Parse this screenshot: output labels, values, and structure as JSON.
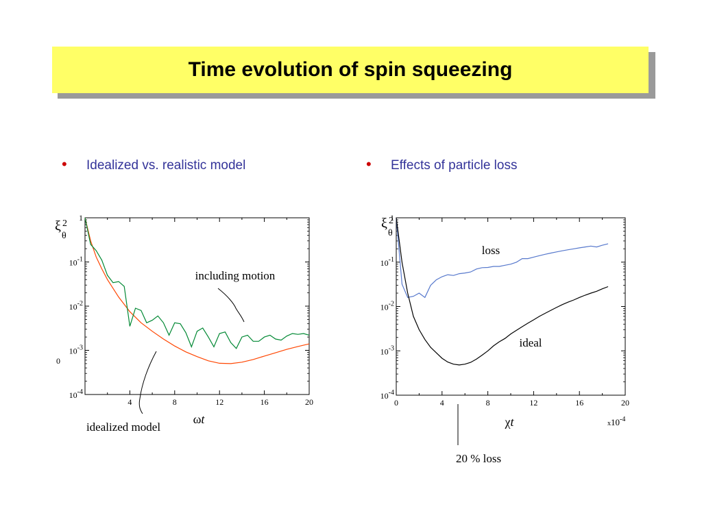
{
  "header": {
    "title": "Time evolution of spin squeezing"
  },
  "bullets": [
    {
      "text": "Idealized vs. realistic model"
    },
    {
      "text": "Effects of particle loss"
    }
  ],
  "chart_data": [
    {
      "type": "line",
      "ylabel_main": "ξ",
      "ylabel_sup": "2",
      "ylabel_sub": "θ",
      "xlabel": "ωt",
      "yscale": "log",
      "xlim": [
        0,
        20
      ],
      "ylim": [
        0.0001,
        1
      ],
      "x_ticks": [
        4,
        8,
        12,
        16,
        20
      ],
      "y_ticks": [
        {
          "value": 1,
          "base": "1",
          "exp": ""
        },
        {
          "value": 0.1,
          "base": "10",
          "exp": "-1"
        },
        {
          "value": 0.01,
          "base": "10",
          "exp": "-2"
        },
        {
          "value": 0.001,
          "base": "10",
          "exp": "-3"
        },
        {
          "value": 0.0001,
          "base": "10",
          "exp": "-4"
        }
      ],
      "stray_label": "0",
      "series": [
        {
          "color": "#ff4500",
          "x": [
            0,
            0.5,
            1,
            1.5,
            2,
            3,
            4,
            5,
            6,
            7,
            8,
            9,
            10,
            11,
            12,
            13,
            14,
            15,
            16,
            17,
            18,
            19,
            20
          ],
          "y": [
            1,
            0.3,
            0.13,
            0.07,
            0.04,
            0.016,
            0.0075,
            0.0042,
            0.0027,
            0.0018,
            0.00125,
            0.00092,
            0.00072,
            0.00058,
            0.00051,
            0.0005,
            0.00054,
            0.00062,
            0.00074,
            0.00088,
            0.00105,
            0.00122,
            0.0014
          ]
        },
        {
          "color": "#008833",
          "x": [
            0,
            0.5,
            1,
            1.5,
            2,
            2.5,
            3,
            3.5,
            4,
            4.5,
            5,
            5.5,
            6,
            6.5,
            7,
            7.5,
            8,
            8.5,
            9,
            9.5,
            10,
            10.5,
            11,
            11.5,
            12,
            12.5,
            13,
            13.5,
            14,
            14.5,
            15,
            15.5,
            16,
            16.5,
            17,
            17.5,
            18,
            18.5,
            19,
            19.5,
            20
          ],
          "y": [
            1,
            0.25,
            0.18,
            0.11,
            0.05,
            0.034,
            0.036,
            0.028,
            0.0035,
            0.009,
            0.008,
            0.0042,
            0.0048,
            0.006,
            0.0042,
            0.0022,
            0.0042,
            0.004,
            0.0025,
            0.0012,
            0.0027,
            0.0032,
            0.002,
            0.0012,
            0.0024,
            0.0026,
            0.0015,
            0.0011,
            0.002,
            0.0022,
            0.0016,
            0.0016,
            0.002,
            0.0022,
            0.0018,
            0.0017,
            0.0021,
            0.0024,
            0.0023,
            0.0024,
            0.0022
          ]
        }
      ],
      "annotations": [
        {
          "text": "including motion"
        },
        {
          "text": "idealized model"
        }
      ]
    },
    {
      "type": "line",
      "ylabel_main": "ξ",
      "ylabel_sup": "2",
      "ylabel_sub": "θ",
      "xlabel": "χt",
      "xlabel_scale": {
        "prefix": "x",
        "base": "10",
        "exp": "-4"
      },
      "yscale": "log",
      "xlim": [
        0,
        20
      ],
      "ylim": [
        0.0001,
        1
      ],
      "x_ticks": [
        0,
        4,
        8,
        12,
        16,
        20
      ],
      "y_ticks": [
        {
          "value": 1,
          "base": "1",
          "exp": ""
        },
        {
          "value": 0.1,
          "base": "10",
          "exp": "-1"
        },
        {
          "value": 0.01,
          "base": "10",
          "exp": "-2"
        },
        {
          "value": 0.001,
          "base": "10",
          "exp": "-3"
        },
        {
          "value": 0.0001,
          "base": "10",
          "exp": "-4"
        }
      ],
      "series": [
        {
          "name": "loss",
          "color": "#5577cc",
          "x": [
            0,
            0.5,
            1,
            1.5,
            2,
            2.5,
            3,
            3.5,
            4,
            4.5,
            5,
            5.5,
            6,
            6.5,
            7,
            7.5,
            8,
            8.5,
            9,
            9.5,
            10,
            10.5,
            11,
            11.5,
            12,
            12.5,
            13,
            13.5,
            14,
            14.5,
            15,
            15.5,
            16,
            16.5,
            17,
            17.5,
            18,
            18.5
          ],
          "y": [
            1,
            0.032,
            0.016,
            0.017,
            0.02,
            0.016,
            0.03,
            0.04,
            0.047,
            0.052,
            0.05,
            0.055,
            0.057,
            0.06,
            0.07,
            0.075,
            0.076,
            0.08,
            0.08,
            0.085,
            0.09,
            0.1,
            0.12,
            0.12,
            0.13,
            0.14,
            0.15,
            0.16,
            0.17,
            0.18,
            0.19,
            0.2,
            0.21,
            0.22,
            0.23,
            0.22,
            0.24,
            0.26
          ]
        },
        {
          "name": "ideal",
          "color": "#000000",
          "x": [
            0,
            0.5,
            1,
            1.5,
            2,
            2.5,
            3,
            3.5,
            4,
            4.5,
            5,
            5.5,
            6,
            6.5,
            7,
            7.5,
            8,
            8.5,
            9,
            9.5,
            10,
            10.5,
            11,
            11.5,
            12,
            12.5,
            13,
            13.5,
            14,
            14.5,
            15,
            15.5,
            16,
            16.5,
            17,
            17.5,
            18,
            18.5
          ],
          "y": [
            1,
            0.1,
            0.02,
            0.006,
            0.003,
            0.0018,
            0.0012,
            0.0009,
            0.00068,
            0.00056,
            0.0005,
            0.00048,
            0.0005,
            0.00055,
            0.00065,
            0.0008,
            0.001,
            0.0013,
            0.0016,
            0.0019,
            0.0024,
            0.0029,
            0.0035,
            0.0042,
            0.005,
            0.006,
            0.007,
            0.0082,
            0.0095,
            0.011,
            0.0125,
            0.014,
            0.016,
            0.018,
            0.02,
            0.022,
            0.025,
            0.028
          ]
        }
      ],
      "annotations": [
        {
          "text": "loss"
        },
        {
          "text": "ideal"
        },
        {
          "text": "20 % loss"
        }
      ]
    }
  ]
}
